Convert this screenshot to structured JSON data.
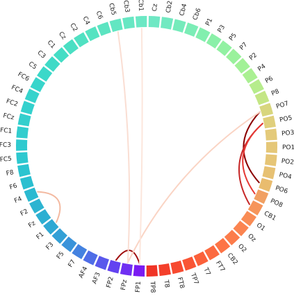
{
  "diagram": {
    "type": "circular-connectivity",
    "nodes": [
      {
        "label": "Cz",
        "color": "#6FE8C4"
      },
      {
        "label": "Cb2",
        "color": "#71E9C1"
      },
      {
        "label": "Cb4",
        "color": "#75EBBB"
      },
      {
        "label": "Cb6",
        "color": "#7BEDB6"
      },
      {
        "label": "P1",
        "color": "#82EFAE"
      },
      {
        "label": "P3",
        "color": "#8AF0A8"
      },
      {
        "label": "P5",
        "color": "#92F1A2"
      },
      {
        "label": "P7",
        "color": "#9AF19C"
      },
      {
        "label": "P2",
        "color": "#A2F197"
      },
      {
        "label": "P4",
        "color": "#AAF092"
      },
      {
        "label": "P6",
        "color": "#B6EC8C"
      },
      {
        "label": "P8",
        "color": "#C4E685"
      },
      {
        "label": "PO7",
        "color": "#D8D67E"
      },
      {
        "label": "PO5",
        "color": "#E0CF7C"
      },
      {
        "label": "PO3",
        "color": "#E4CA7A"
      },
      {
        "label": "PO1",
        "color": "#E5C778"
      },
      {
        "label": "PO2",
        "color": "#E6C576"
      },
      {
        "label": "PO4",
        "color": "#E7C173"
      },
      {
        "label": "PO6",
        "color": "#E9BC6E"
      },
      {
        "label": "PO8",
        "color": "#F1A062"
      },
      {
        "label": "CB1",
        "color": "#F6955A"
      },
      {
        "label": "O1",
        "color": "#F98C55"
      },
      {
        "label": "Oz",
        "color": "#FB8450"
      },
      {
        "label": "O2",
        "color": "#FC7C4B"
      },
      {
        "label": "CB2",
        "color": "#FD7446"
      },
      {
        "label": "FT7",
        "color": "#FC6A40"
      },
      {
        "label": "T7",
        "color": "#FB603A"
      },
      {
        "label": "TP7",
        "color": "#F95535"
      },
      {
        "label": "FT8",
        "color": "#F74A30"
      },
      {
        "label": "T8",
        "color": "#F43F2B"
      },
      {
        "label": "TP8",
        "color": "#F03426"
      },
      {
        "label": "FP1",
        "color": "#7A1BF2"
      },
      {
        "label": "FPz",
        "color": "#6F2FF2"
      },
      {
        "label": "FP2",
        "color": "#6342F0"
      },
      {
        "label": "AF3",
        "color": "#5A58EC"
      },
      {
        "label": "AF4",
        "color": "#4F6DE7"
      },
      {
        "label": "F7",
        "color": "#4482E0"
      },
      {
        "label": "F5",
        "color": "#3A93DA"
      },
      {
        "label": "F3",
        "color": "#33A0D6"
      },
      {
        "label": "F1",
        "color": "#2FA8D3"
      },
      {
        "label": "Fz",
        "color": "#2DAFD2"
      },
      {
        "label": "F2",
        "color": "#2CB4D1"
      },
      {
        "label": "F4",
        "color": "#2BB9D0"
      },
      {
        "label": "F6",
        "color": "#2BBFD0"
      },
      {
        "label": "F8",
        "color": "#2CC4D0"
      },
      {
        "label": "FC5",
        "color": "#2DC8CF"
      },
      {
        "label": "FC3",
        "color": "#2FCACF"
      },
      {
        "label": "FC1",
        "color": "#31CDCE"
      },
      {
        "label": "FCz",
        "color": "#33CFCD"
      },
      {
        "label": "FC2",
        "color": "#34D1CD"
      },
      {
        "label": "FC4",
        "color": "#36D3CC"
      },
      {
        "label": "FC6",
        "color": "#38D5CB"
      },
      {
        "label": "C5",
        "color": "#3BD8C9"
      },
      {
        "label": "C3",
        "color": "#3FDAC7"
      },
      {
        "label": "C1",
        "color": "#44DDC5"
      },
      {
        "label": "Cz",
        "color": "#4ADFC3"
      },
      {
        "label": "C2",
        "color": "#50E1C2"
      },
      {
        "label": "C4",
        "color": "#56E3C1"
      },
      {
        "label": "C6",
        "color": "#5CE4C1"
      },
      {
        "label": "Cb5",
        "color": "#63E6C2"
      },
      {
        "label": "Cb3",
        "color": "#67E7C3"
      },
      {
        "label": "Cb1",
        "color": "#6BE8C4"
      }
    ],
    "connections": [
      {
        "from": 12,
        "to": 18,
        "color": "#8B0000"
      },
      {
        "from": 13,
        "to": 20,
        "color": "#C62828"
      },
      {
        "from": 13,
        "to": 19,
        "color": "#E53935"
      },
      {
        "from": 31,
        "to": 33,
        "color": "#A00D0D"
      },
      {
        "from": 12,
        "to": 32,
        "color": "#FAD4C4"
      },
      {
        "from": 39,
        "to": 42,
        "color": "#F3B9A0"
      },
      {
        "from": 59,
        "to": 32,
        "color": "#FADED3"
      },
      {
        "from": 61,
        "to": 31,
        "color": "#FCE6DC"
      }
    ]
  }
}
